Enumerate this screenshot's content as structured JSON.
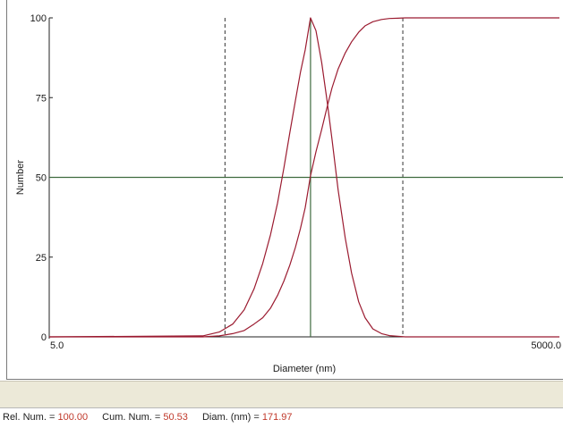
{
  "chart_data": {
    "type": "line",
    "xlabel": "Diameter (nm)",
    "ylabel": "Number",
    "x_scale": "log",
    "xlim": [
      5.0,
      5000.0
    ],
    "ylim": [
      0,
      100
    ],
    "x_tick_labels": [
      "5.0",
      "5000.0"
    ],
    "y_ticks": [
      0,
      25,
      50,
      75,
      100
    ],
    "y_tick_labels": [
      "0",
      "25",
      "50",
      "75",
      "100"
    ],
    "grid": false,
    "colors": {
      "curves": "#9b1b30",
      "cursor": "#3f6b3f",
      "markers": "#333333"
    },
    "series": [
      {
        "x": [
          40,
          50,
          60,
          70,
          80,
          90,
          100,
          110,
          120,
          130,
          140,
          150,
          160,
          172,
          185,
          200,
          215,
          230,
          250,
          275,
          300,
          330,
          360,
          400,
          450,
          500,
          560,
          620
        ],
        "values": [
          0.3,
          1.5,
          4,
          8.5,
          15,
          23,
          32,
          42,
          53,
          64,
          74,
          83,
          90,
          100,
          96,
          86,
          74,
          62,
          46,
          31,
          20,
          11,
          6,
          2.5,
          1,
          0.4,
          0.2,
          0
        ]
      },
      {
        "x": [
          40,
          50,
          60,
          70,
          80,
          90,
          100,
          110,
          120,
          130,
          140,
          150,
          160,
          172,
          185,
          200,
          215,
          230,
          250,
          275,
          300,
          330,
          360,
          400,
          450,
          500,
          560,
          620,
          700,
          800,
          1000,
          1500,
          2500,
          5000
        ],
        "values": [
          0,
          0.3,
          1,
          2,
          4,
          6,
          9,
          13,
          17.5,
          22.5,
          28,
          34,
          40.5,
          50.5,
          58,
          65,
          72,
          78,
          84,
          89,
          92.5,
          95.5,
          97.5,
          98.8,
          99.5,
          99.8,
          99.9,
          100,
          100,
          100,
          100,
          100,
          100,
          100
        ]
      }
    ],
    "cursor": {
      "x": 171.97,
      "y": 50
    },
    "marker_lines_x": [
      54,
      600
    ]
  },
  "status": {
    "rel_num_label": "Rel. Num. =",
    "rel_num_value": "100.00",
    "cum_num_label": "Cum. Num. =",
    "cum_num_value": "50.53",
    "diam_label": "Diam. (nm) =",
    "diam_value": "171.97"
  }
}
